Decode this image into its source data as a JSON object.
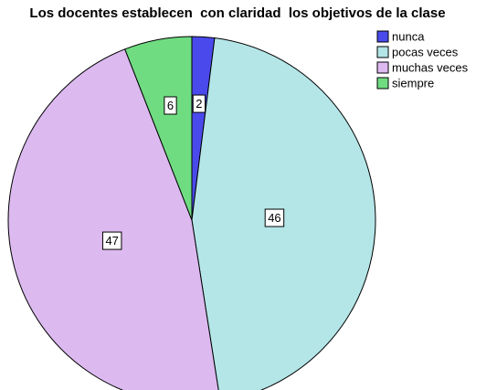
{
  "chart_data": {
    "type": "pie",
    "title": "Los docentes establecen  con claridad  los objetivos de la clase",
    "categories": [
      "nunca",
      "pocas veces",
      "muchas veces",
      "siempre"
    ],
    "values": [
      2,
      46,
      47,
      6
    ],
    "colors": [
      "#4a4aec",
      "#b4e6e8",
      "#dcbaf0",
      "#70dc82"
    ],
    "legend": "top-right"
  }
}
